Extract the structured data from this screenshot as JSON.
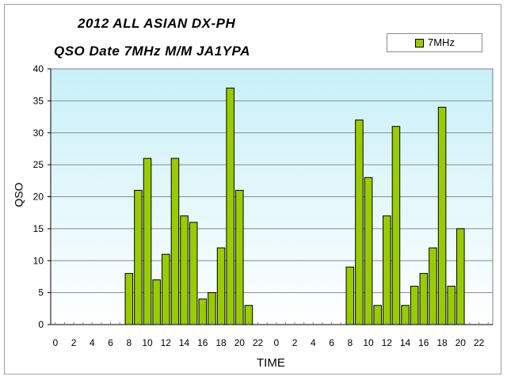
{
  "chart_data": {
    "type": "bar",
    "title": "2012 ALL ASIAN DX-PH",
    "subtitle": "QSO Date 7MHz M/M JA1YPA",
    "xlabel": "TIME",
    "ylabel": "QSO",
    "ylim": [
      0,
      40
    ],
    "yticks": [
      0,
      5,
      10,
      15,
      20,
      25,
      30,
      35,
      40
    ],
    "grid": true,
    "legend_position": "top-right",
    "categories": [
      "0",
      "1",
      "2",
      "3",
      "4",
      "5",
      "6",
      "7",
      "8",
      "9",
      "10",
      "11",
      "12",
      "13",
      "14",
      "15",
      "16",
      "17",
      "18",
      "19",
      "20",
      "21",
      "22",
      "23",
      "0",
      "1",
      "2",
      "3",
      "4",
      "5",
      "6",
      "7",
      "8",
      "9",
      "10",
      "11",
      "12",
      "13",
      "14",
      "15",
      "16",
      "17",
      "18",
      "19",
      "20",
      "21",
      "22",
      "23"
    ],
    "tick_labels": [
      "0",
      "2",
      "4",
      "6",
      "8",
      "10",
      "12",
      "14",
      "16",
      "18",
      "20",
      "22",
      "0",
      "2",
      "4",
      "6",
      "8",
      "10",
      "12",
      "14",
      "16",
      "18",
      "20",
      "22"
    ],
    "series": [
      {
        "name": "7MHz",
        "color": "#99cc00",
        "values": [
          0,
          0,
          0,
          0,
          0,
          0,
          0,
          0,
          8,
          21,
          26,
          7,
          11,
          26,
          17,
          16,
          4,
          5,
          12,
          37,
          21,
          3,
          0,
          0,
          0,
          0,
          0,
          0,
          0,
          0,
          0,
          0,
          9,
          32,
          23,
          3,
          17,
          31,
          3,
          6,
          8,
          12,
          34,
          6,
          15,
          0,
          0,
          0
        ]
      }
    ],
    "colors": {
      "plot_top": "#c8f0f8",
      "plot_bottom": "#ffffff",
      "bar_fill": "#99cc00",
      "gridline": "#8a8a8a"
    }
  }
}
